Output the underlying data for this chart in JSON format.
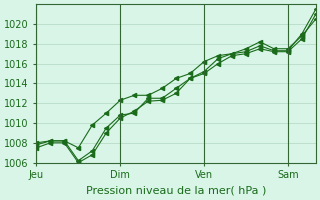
{
  "xlabel": "Pression niveau de la mer( hPa )",
  "ylabel": "",
  "bg_color": "#d8f5e8",
  "grid_color": "#b0d8c0",
  "line_color": "#1a6b1a",
  "marker_color": "#1a6b1a",
  "ylim": [
    1006,
    1022
  ],
  "yticks": [
    1006,
    1008,
    1010,
    1012,
    1014,
    1016,
    1018,
    1020
  ],
  "xtick_labels": [
    "Jeu",
    "Dim",
    "Ven",
    "Sam"
  ],
  "xtick_positions": [
    0,
    3,
    6,
    9
  ],
  "vline_positions": [
    0,
    3,
    6,
    9
  ],
  "line1_x": [
    0,
    0.5,
    1,
    1.5,
    2,
    2.5,
    3,
    3.5,
    4,
    4.5,
    5,
    5.5,
    6,
    6.5,
    7,
    7.5,
    8,
    8.5,
    9,
    9.5,
    10
  ],
  "line1_y": [
    1007.8,
    1008.2,
    1008.2,
    1006.2,
    1007.2,
    1009.5,
    1010.8,
    1011.0,
    1012.5,
    1012.5,
    1013.5,
    1014.5,
    1015.2,
    1016.5,
    1017.0,
    1017.2,
    1017.8,
    1017.3,
    1017.3,
    1019.0,
    1021.5
  ],
  "line2_x": [
    0,
    0.5,
    1,
    1.5,
    2,
    2.5,
    3,
    3.5,
    4,
    4.5,
    5,
    5.5,
    6,
    6.5,
    7,
    7.5,
    8,
    8.5,
    9,
    9.5,
    10
  ],
  "line2_y": [
    1008.0,
    1008.2,
    1008.2,
    1007.5,
    1009.8,
    1011.0,
    1012.3,
    1012.8,
    1012.8,
    1013.5,
    1014.5,
    1015.0,
    1016.2,
    1016.8,
    1017.0,
    1017.5,
    1018.2,
    1017.5,
    1017.5,
    1018.8,
    1020.5
  ],
  "line3_x": [
    0,
    0.5,
    1,
    1.5,
    2,
    2.5,
    3,
    3.5,
    4,
    4.5,
    5,
    5.5,
    6,
    6.5,
    7,
    7.5,
    8,
    8.5,
    9,
    9.5,
    10
  ],
  "line3_y": [
    1007.5,
    1008.0,
    1008.0,
    1006.0,
    1006.8,
    1009.0,
    1010.5,
    1011.2,
    1012.2,
    1012.3,
    1013.0,
    1014.5,
    1015.0,
    1016.0,
    1016.8,
    1017.0,
    1017.5,
    1017.2,
    1017.2,
    1018.5,
    1021.0
  ]
}
